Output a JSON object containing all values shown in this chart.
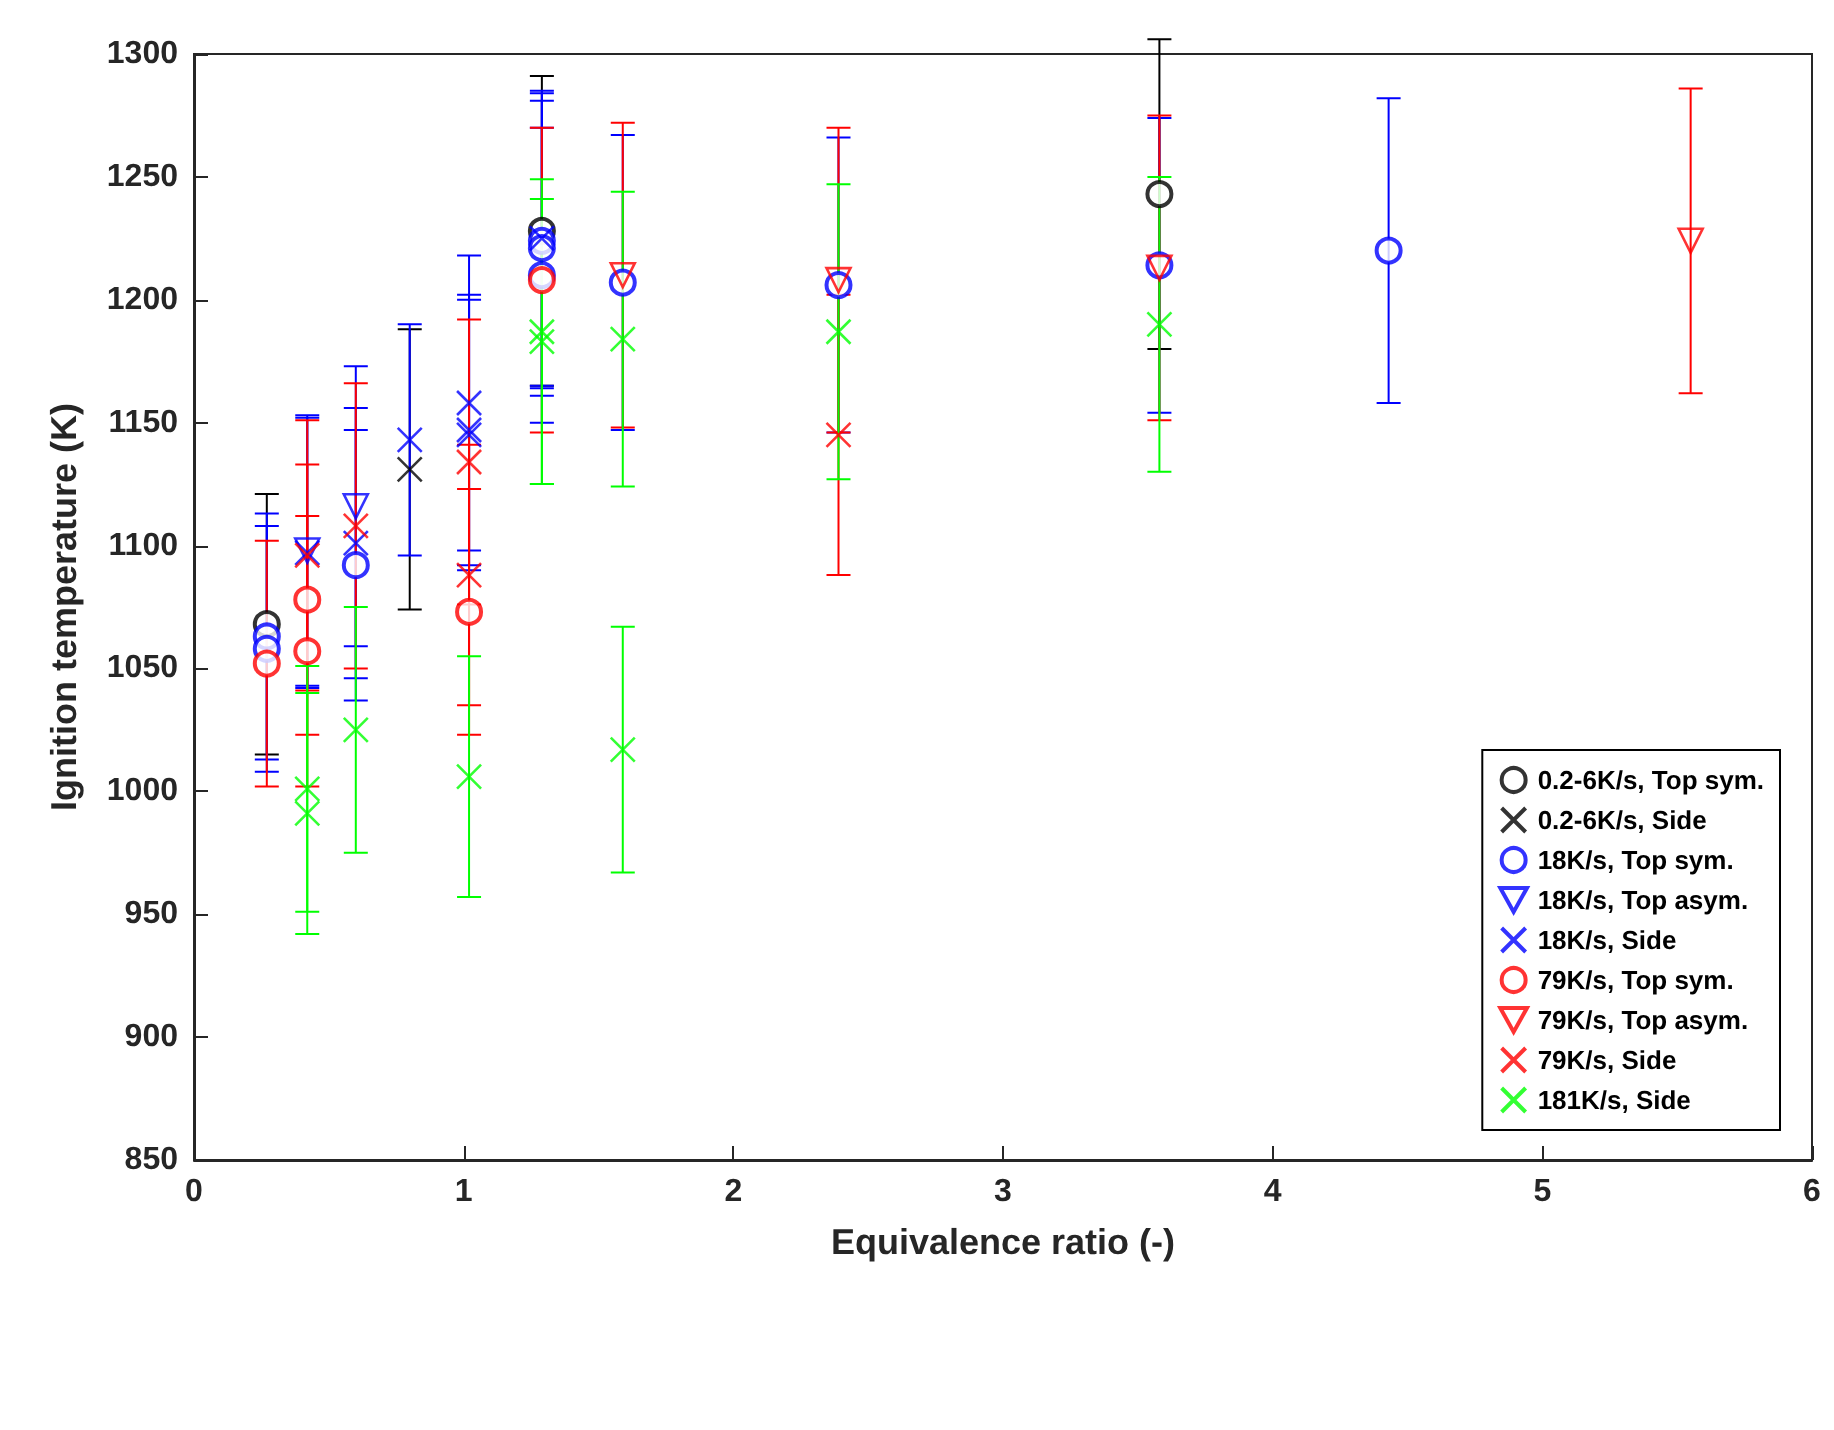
{
  "chart_data": {
    "type": "scatter",
    "xlabel": "Equivalence ratio (-)",
    "ylabel": "Ignition temperature (K)",
    "xlim": [
      0,
      6
    ],
    "ylim": [
      850,
      1300
    ],
    "xticks": [
      0,
      1,
      2,
      3,
      4,
      5,
      6
    ],
    "yticks": [
      850,
      900,
      950,
      1000,
      1050,
      1100,
      1150,
      1200,
      1250,
      1300
    ],
    "grid": false,
    "legend": "bottom right",
    "series": [
      {
        "name": "0.2-6K/s, Top sym.",
        "color": "#000000",
        "marker": "circle",
        "x": [
          0.27,
          1.29,
          3.58
        ],
        "values": [
          1068,
          1228,
          1243
        ],
        "errors": [
          53,
          63,
          63
        ]
      },
      {
        "name": "0.2-6K/s, Side",
        "color": "#000000",
        "marker": "cross",
        "x": [
          0.8
        ],
        "values": [
          1131
        ],
        "errors": [
          57
        ]
      },
      {
        "name": "18K/s, Top sym.",
        "color": "#0000ff",
        "marker": "circle",
        "x": [
          0.27,
          0.27,
          0.6,
          1.29,
          1.29,
          1.29,
          1.59,
          2.39,
          3.58,
          4.43
        ],
        "values": [
          1063,
          1058,
          1092,
          1224,
          1221,
          1210,
          1207,
          1206,
          1214,
          1220
        ],
        "errors": [
          50,
          50,
          55,
          60,
          60,
          60,
          60,
          60,
          60,
          62
        ]
      },
      {
        "name": "18K/s, Top asym.",
        "color": "#0000ff",
        "marker": "triangle",
        "x": [
          0.42,
          0.6
        ],
        "values": [
          1098,
          1116
        ],
        "errors": [
          55,
          57
        ]
      },
      {
        "name": "18K/s, Side",
        "color": "#0000ff",
        "marker": "cross",
        "x": [
          0.42,
          0.6,
          0.8,
          1.02,
          1.02,
          1.02,
          1.29
        ],
        "values": [
          1097,
          1101,
          1143,
          1158,
          1147,
          1145,
          1225
        ],
        "errors": [
          55,
          55,
          47,
          60,
          55,
          55,
          60
        ]
      },
      {
        "name": "79K/s, Top sym.",
        "color": "#ff0000",
        "marker": "circle",
        "x": [
          0.27,
          0.42,
          0.42,
          1.02,
          1.29
        ],
        "values": [
          1052,
          1078,
          1057,
          1073,
          1208
        ],
        "errors": [
          50,
          55,
          55,
          50,
          62
        ]
      },
      {
        "name": "79K/s, Top asym.",
        "color": "#ff0000",
        "marker": "triangle",
        "x": [
          1.59,
          2.39,
          3.58,
          5.55
        ],
        "values": [
          1210,
          1208,
          1213,
          1224
        ],
        "errors": [
          62,
          62,
          62,
          62
        ]
      },
      {
        "name": "79K/s, Side",
        "color": "#ff0000",
        "marker": "cross",
        "x": [
          0.42,
          0.6,
          1.02,
          1.02,
          2.39
        ],
        "values": [
          1096,
          1108,
          1134,
          1088,
          1145
        ],
        "errors": [
          55,
          58,
          58,
          53,
          57
        ]
      },
      {
        "name": "181K/s, Side",
        "color": "#00ff00",
        "marker": "cross",
        "x": [
          0.42,
          0.42,
          0.6,
          1.02,
          1.29,
          1.29,
          1.59,
          1.59,
          2.39,
          3.58
        ],
        "values": [
          1001,
          991,
          1025,
          1006,
          1187,
          1183,
          1184,
          1017,
          1187,
          1190
        ],
        "errors": [
          50,
          49,
          50,
          49,
          62,
          58,
          60,
          50,
          60,
          60
        ]
      }
    ]
  }
}
